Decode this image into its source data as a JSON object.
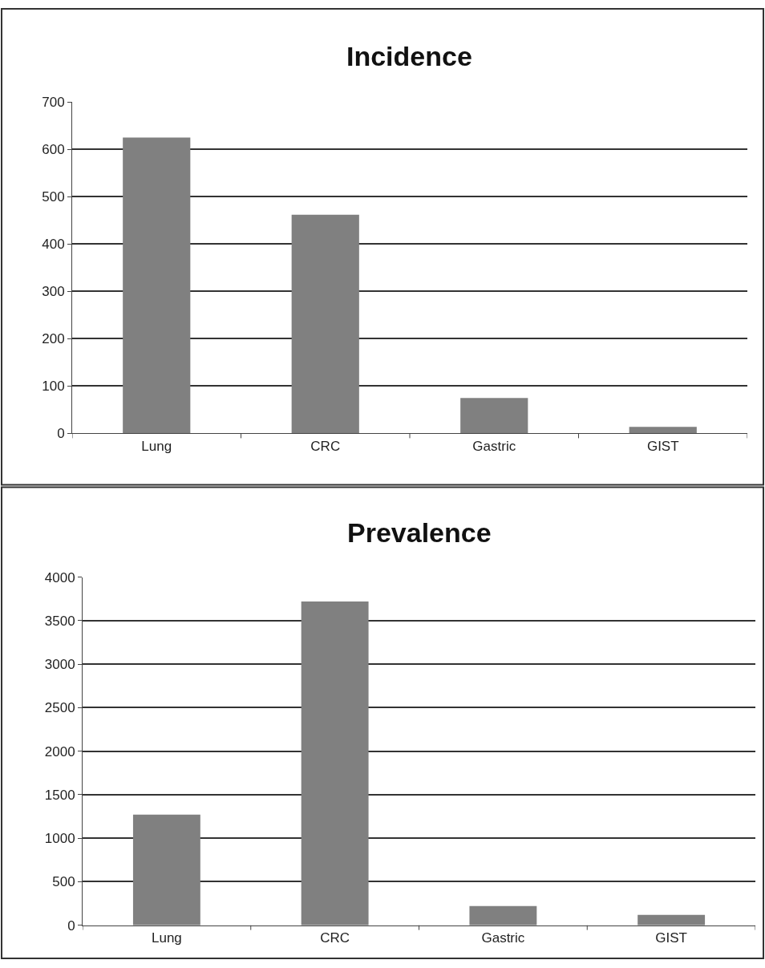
{
  "chart_data": [
    {
      "type": "bar",
      "title": "Incidence",
      "categories": [
        "Lung",
        "CRC",
        "Gastric",
        "GIST"
      ],
      "values": [
        625,
        462,
        75,
        14
      ],
      "color": "#808080",
      "ylim": [
        0,
        700
      ],
      "yticks": [
        0,
        100,
        200,
        300,
        400,
        500,
        600,
        700
      ],
      "grid": "y"
    },
    {
      "type": "bar",
      "title": "Prevalence",
      "categories": [
        "Lung",
        "CRC",
        "Gastric",
        "GIST"
      ],
      "values": [
        1270,
        3720,
        220,
        120
      ],
      "color": "#808080",
      "ylim": [
        0,
        4000
      ],
      "yticks": [
        0,
        500,
        1000,
        1500,
        2000,
        2500,
        3000,
        3500,
        4000
      ],
      "grid": "y"
    }
  ]
}
